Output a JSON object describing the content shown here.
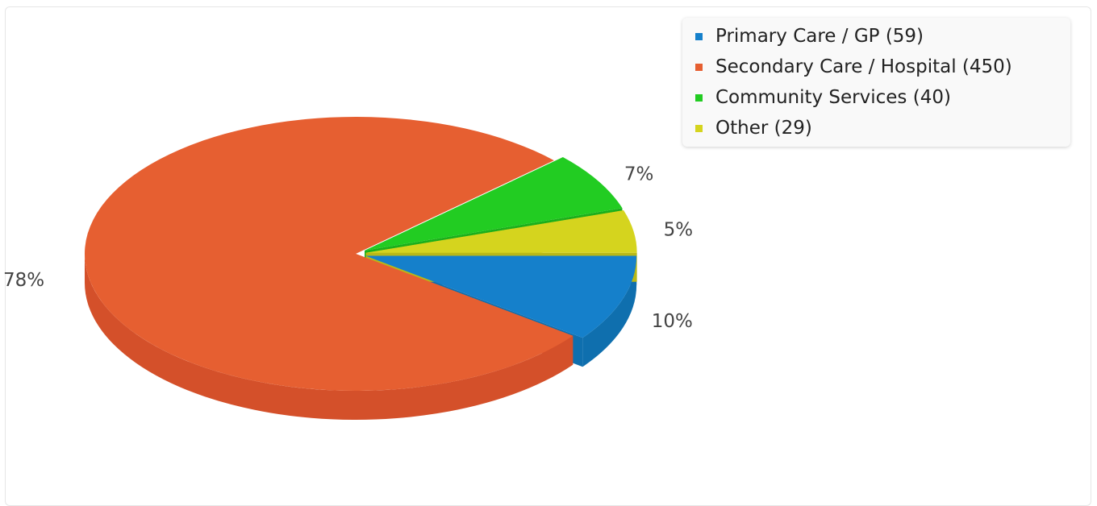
{
  "chart_data": {
    "type": "pie",
    "style": "3d",
    "title": "",
    "legend_position": "top-right",
    "slices": [
      {
        "label": "Primary Care / GP",
        "value": 59,
        "percent_label": "10%",
        "color": "#1580cb",
        "side_color": "#0f6fae",
        "exploded": true
      },
      {
        "label": "Secondary Care / Hospital",
        "value": 450,
        "percent_label": "78%",
        "color": "#e65f31",
        "side_color": "#d4502a",
        "exploded": false
      },
      {
        "label": "Community Services",
        "value": 40,
        "percent_label": "7%",
        "color": "#22cc22",
        "side_color": "#1bb01b",
        "exploded": true
      },
      {
        "label": "Other",
        "value": 29,
        "percent_label": "5%",
        "color": "#d5d41e",
        "side_color": "#b9b816",
        "exploded": true
      }
    ]
  },
  "legend": {
    "items": [
      "Primary Care / GP (59)",
      "Secondary Care / Hospital (450)",
      "Community Services (40)",
      "Other (29)"
    ]
  }
}
